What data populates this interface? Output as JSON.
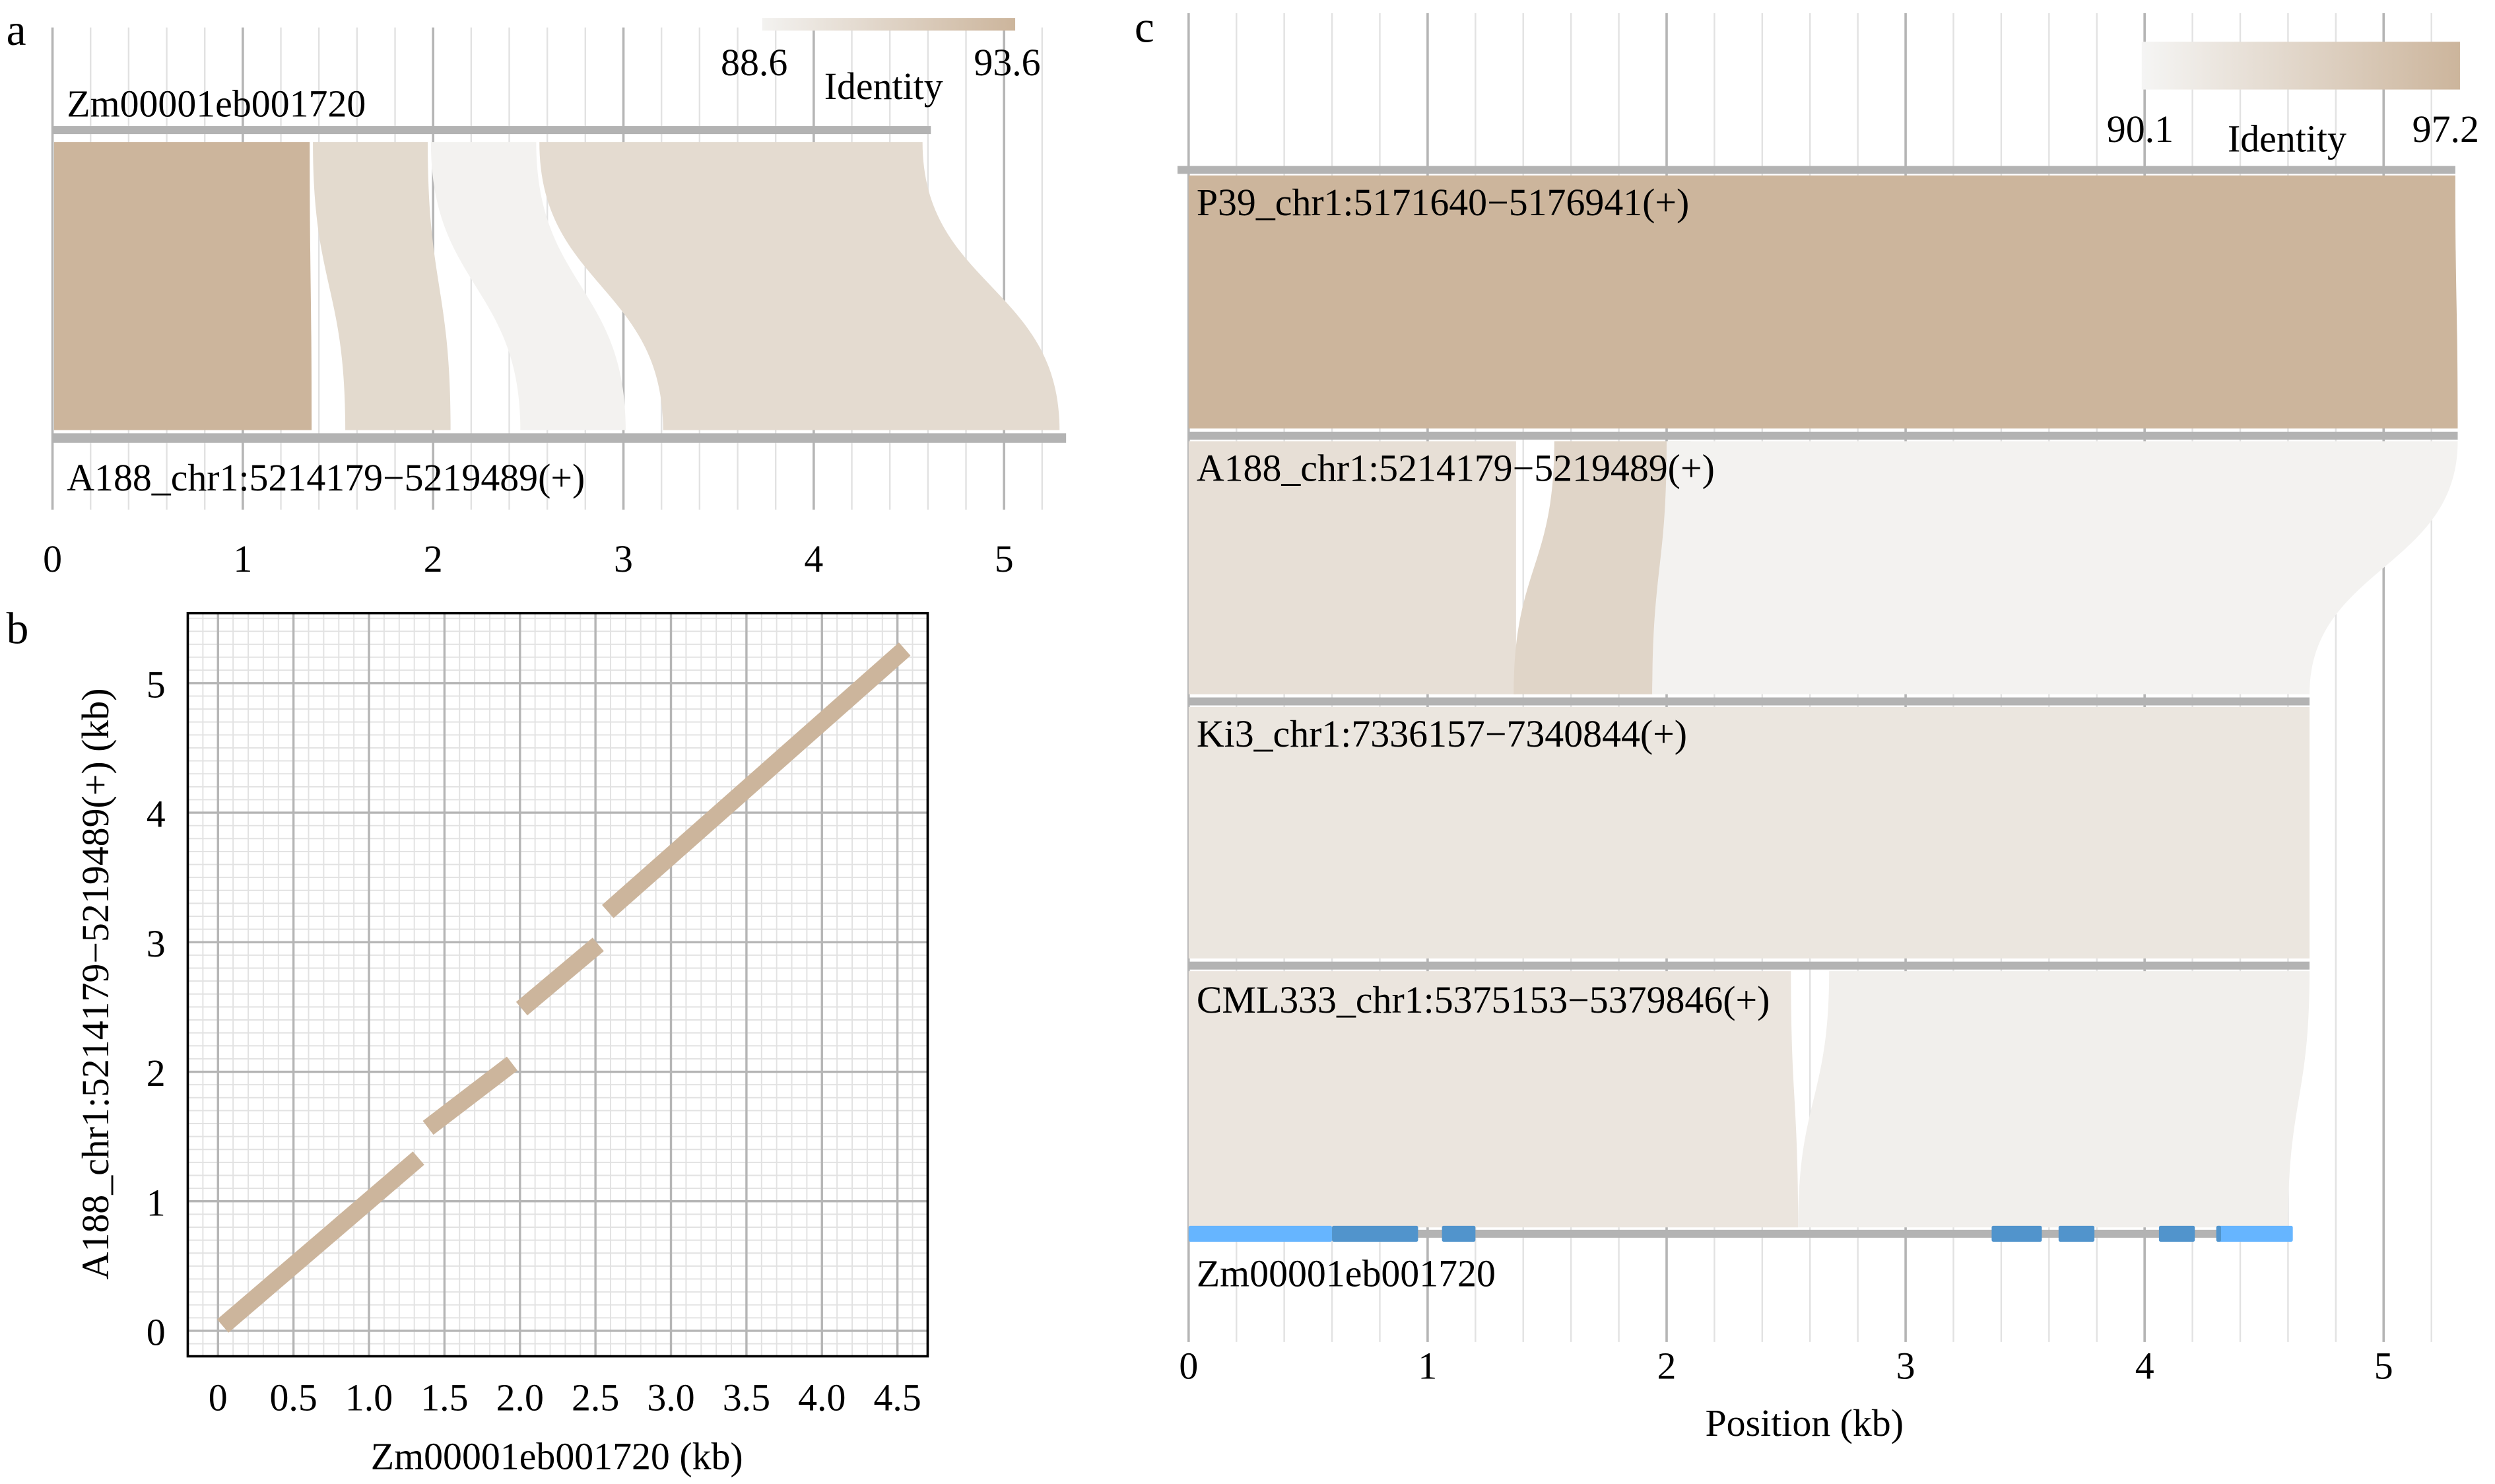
{
  "panels": {
    "a": {
      "letter": "a"
    },
    "b": {
      "letter": "b"
    },
    "c": {
      "letter": "c"
    }
  },
  "colors": {
    "identity_low": "#f3f2f0",
    "identity_high": "#ccb59c",
    "grid_major": "#b5b5b5",
    "grid_minor": "#e2e2e2",
    "track": "#b3b3b3",
    "utr": "#66b5ff",
    "cds": "#5194cc"
  },
  "chart_data": [
    {
      "panel": "a",
      "type": "synteny",
      "title": "",
      "xlabel": "",
      "x_ticks": [
        "0",
        "1",
        "2",
        "3",
        "4",
        "5"
      ],
      "xlim": [
        0,
        5.3
      ],
      "legend": {
        "title": "Identity",
        "min": "88.6",
        "max": "93.6"
      },
      "top_track": {
        "label": "Zm00001eb001720",
        "start": 0,
        "end": 4.6
      },
      "bottom_track": {
        "label": "A188_chr1:5214179−5219489(+)",
        "start": 0,
        "end": 5.3
      },
      "blocks": [
        {
          "top": [
            0.0,
            1.36
          ],
          "bottom": [
            0.0,
            1.37
          ],
          "identity": 93.6
        },
        {
          "top": [
            1.36,
            1.98
          ],
          "bottom": [
            1.53,
            2.1
          ],
          "identity": 90.6
        },
        {
          "top": [
            1.98,
            2.55
          ],
          "bottom": [
            2.45,
            3.02
          ],
          "identity": 88.6
        },
        {
          "top": [
            2.55,
            4.58
          ],
          "bottom": [
            3.2,
            5.3
          ],
          "identity": 90.5
        }
      ]
    },
    {
      "panel": "b",
      "type": "scatter",
      "title": "",
      "xlabel": "Zm00001eb001720 (kb)",
      "ylabel": "A188_chr1:5214179−5219489(+) (kb)",
      "x_ticks": [
        "0",
        "0.5",
        "1.0",
        "1.5",
        "2.0",
        "2.5",
        "3.0",
        "3.5",
        "4.0",
        "4.5"
      ],
      "y_ticks": [
        "0",
        "1",
        "2",
        "3",
        "4",
        "5"
      ],
      "xlim": [
        -0.2,
        4.75
      ],
      "ylim": [
        -0.2,
        5.5
      ],
      "grid": true,
      "segments": [
        {
          "x": [
            0.0,
            1.36
          ],
          "y": [
            0.0,
            1.37
          ]
        },
        {
          "x": [
            1.36,
            1.98
          ],
          "y": [
            1.53,
            2.1
          ]
        },
        {
          "x": [
            1.98,
            2.55
          ],
          "y": [
            2.45,
            3.02
          ]
        },
        {
          "x": [
            2.55,
            4.58
          ],
          "y": [
            3.2,
            5.3
          ]
        }
      ]
    },
    {
      "panel": "c",
      "type": "synteny",
      "title": "",
      "xlabel": "Position (kb)",
      "x_ticks": [
        "0",
        "1",
        "2",
        "3",
        "4",
        "5"
      ],
      "xlim": [
        0,
        5.3
      ],
      "legend": {
        "title": "Identity",
        "min": "90.1",
        "max": "97.2"
      },
      "tracks": [
        {
          "label": "P39_chr1:5171640−5176941(+)",
          "length": 5.3
        },
        {
          "label": "A188_chr1:5214179−5219489(+)",
          "length": 5.31
        },
        {
          "label": "Ki3_chr1:7336157−7340844(+)",
          "length": 4.69
        },
        {
          "label": "CML333_chr1:5375153−5379846(+)",
          "length": 4.69
        },
        {
          "label": "Zm00001eb001720",
          "length": 4.6
        }
      ],
      "blocks": [
        {
          "pair": "P39-A188",
          "top": [
            0.0,
            5.3
          ],
          "bottom": [
            0.0,
            5.31
          ],
          "identity": 97.2
        },
        {
          "pair": "A188-Ki3",
          "top": [
            0.0,
            1.37
          ],
          "bottom": [
            0.0,
            1.37
          ],
          "identity": 92.3
        },
        {
          "pair": "A188-Ki3",
          "top": [
            1.53,
            2.1
          ],
          "bottom": [
            1.36,
            1.94
          ],
          "identity": 93.5
        },
        {
          "pair": "A188-Ki3",
          "top": [
            2.0,
            5.31
          ],
          "bottom": [
            1.94,
            4.69
          ],
          "identity": 90.1
        },
        {
          "pair": "Ki3-CML333",
          "top": [
            0.0,
            4.69
          ],
          "bottom": [
            0.0,
            4.69
          ],
          "identity": 91.5
        },
        {
          "pair": "CML333-Zm",
          "top": [
            0.0,
            2.52
          ],
          "bottom": [
            0.0,
            2.55
          ],
          "identity": 91.6
        },
        {
          "pair": "CML333-Zm",
          "top": [
            2.68,
            4.69
          ],
          "bottom": [
            2.55,
            4.6
          ],
          "identity": 90.4
        }
      ],
      "gene_model": {
        "label": "Zm00001eb001720",
        "utr": [
          [
            0.0,
            0.6
          ],
          [
            4.3,
            4.62
          ]
        ],
        "cds": [
          [
            0.6,
            0.96
          ],
          [
            1.06,
            1.2
          ],
          [
            3.36,
            3.57
          ],
          [
            3.64,
            3.79
          ],
          [
            4.06,
            4.21
          ],
          [
            4.3,
            4.32
          ]
        ]
      }
    }
  ]
}
